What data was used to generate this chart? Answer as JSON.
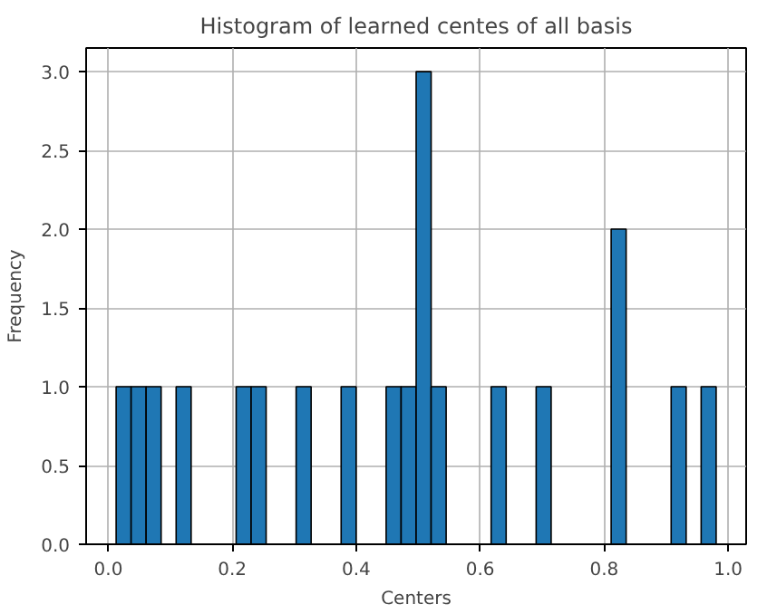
{
  "chart_data": {
    "type": "histogram",
    "title": "Histogram of learned centes of all basis",
    "xlabel": "Centers",
    "ylabel": "Frequency",
    "bins": [
      0.0126,
      0.0368,
      0.061,
      0.0852,
      0.1094,
      0.1336,
      0.1578,
      0.182,
      0.2062,
      0.2304,
      0.2546,
      0.2788,
      0.303,
      0.3272,
      0.3514,
      0.3756,
      0.3998,
      0.424,
      0.4482,
      0.4724,
      0.4966,
      0.5208,
      0.545,
      0.5692,
      0.5934,
      0.6176,
      0.6418,
      0.666,
      0.6902,
      0.7144,
      0.7386,
      0.7628,
      0.787,
      0.8112,
      0.8354,
      0.8596,
      0.8838,
      0.908,
      0.9322,
      0.9564,
      0.9806
    ],
    "values": [
      1,
      1,
      1,
      0,
      1,
      0,
      0,
      0,
      1,
      1,
      0,
      0,
      1,
      0,
      0,
      1,
      0,
      0,
      1,
      1,
      3,
      1,
      0,
      0,
      0,
      1,
      0,
      0,
      1,
      0,
      0,
      0,
      0,
      2,
      0,
      0,
      0,
      1,
      0,
      1
    ],
    "color": "#1f77b4",
    "xlim": [
      -0.0358,
      1.029
    ],
    "ylim": [
      0,
      3.15
    ],
    "xticks": [
      {
        "value": 0,
        "label": "0.0"
      },
      {
        "value": 0.2,
        "label": "0.2"
      },
      {
        "value": 0.4,
        "label": "0.4"
      },
      {
        "value": 0.6,
        "label": "0.6"
      },
      {
        "value": 0.8,
        "label": "0.8"
      },
      {
        "value": 1,
        "label": "1.0"
      }
    ],
    "yticks": [
      {
        "value": 0,
        "label": "0.0"
      },
      {
        "value": 0.5,
        "label": "0.5"
      },
      {
        "value": 1,
        "label": "1.0"
      },
      {
        "value": 1.5,
        "label": "1.5"
      },
      {
        "value": 2,
        "label": "2.0"
      },
      {
        "value": 2.5,
        "label": "2.5"
      },
      {
        "value": 3,
        "label": "3.0"
      }
    ],
    "grid": true
  }
}
